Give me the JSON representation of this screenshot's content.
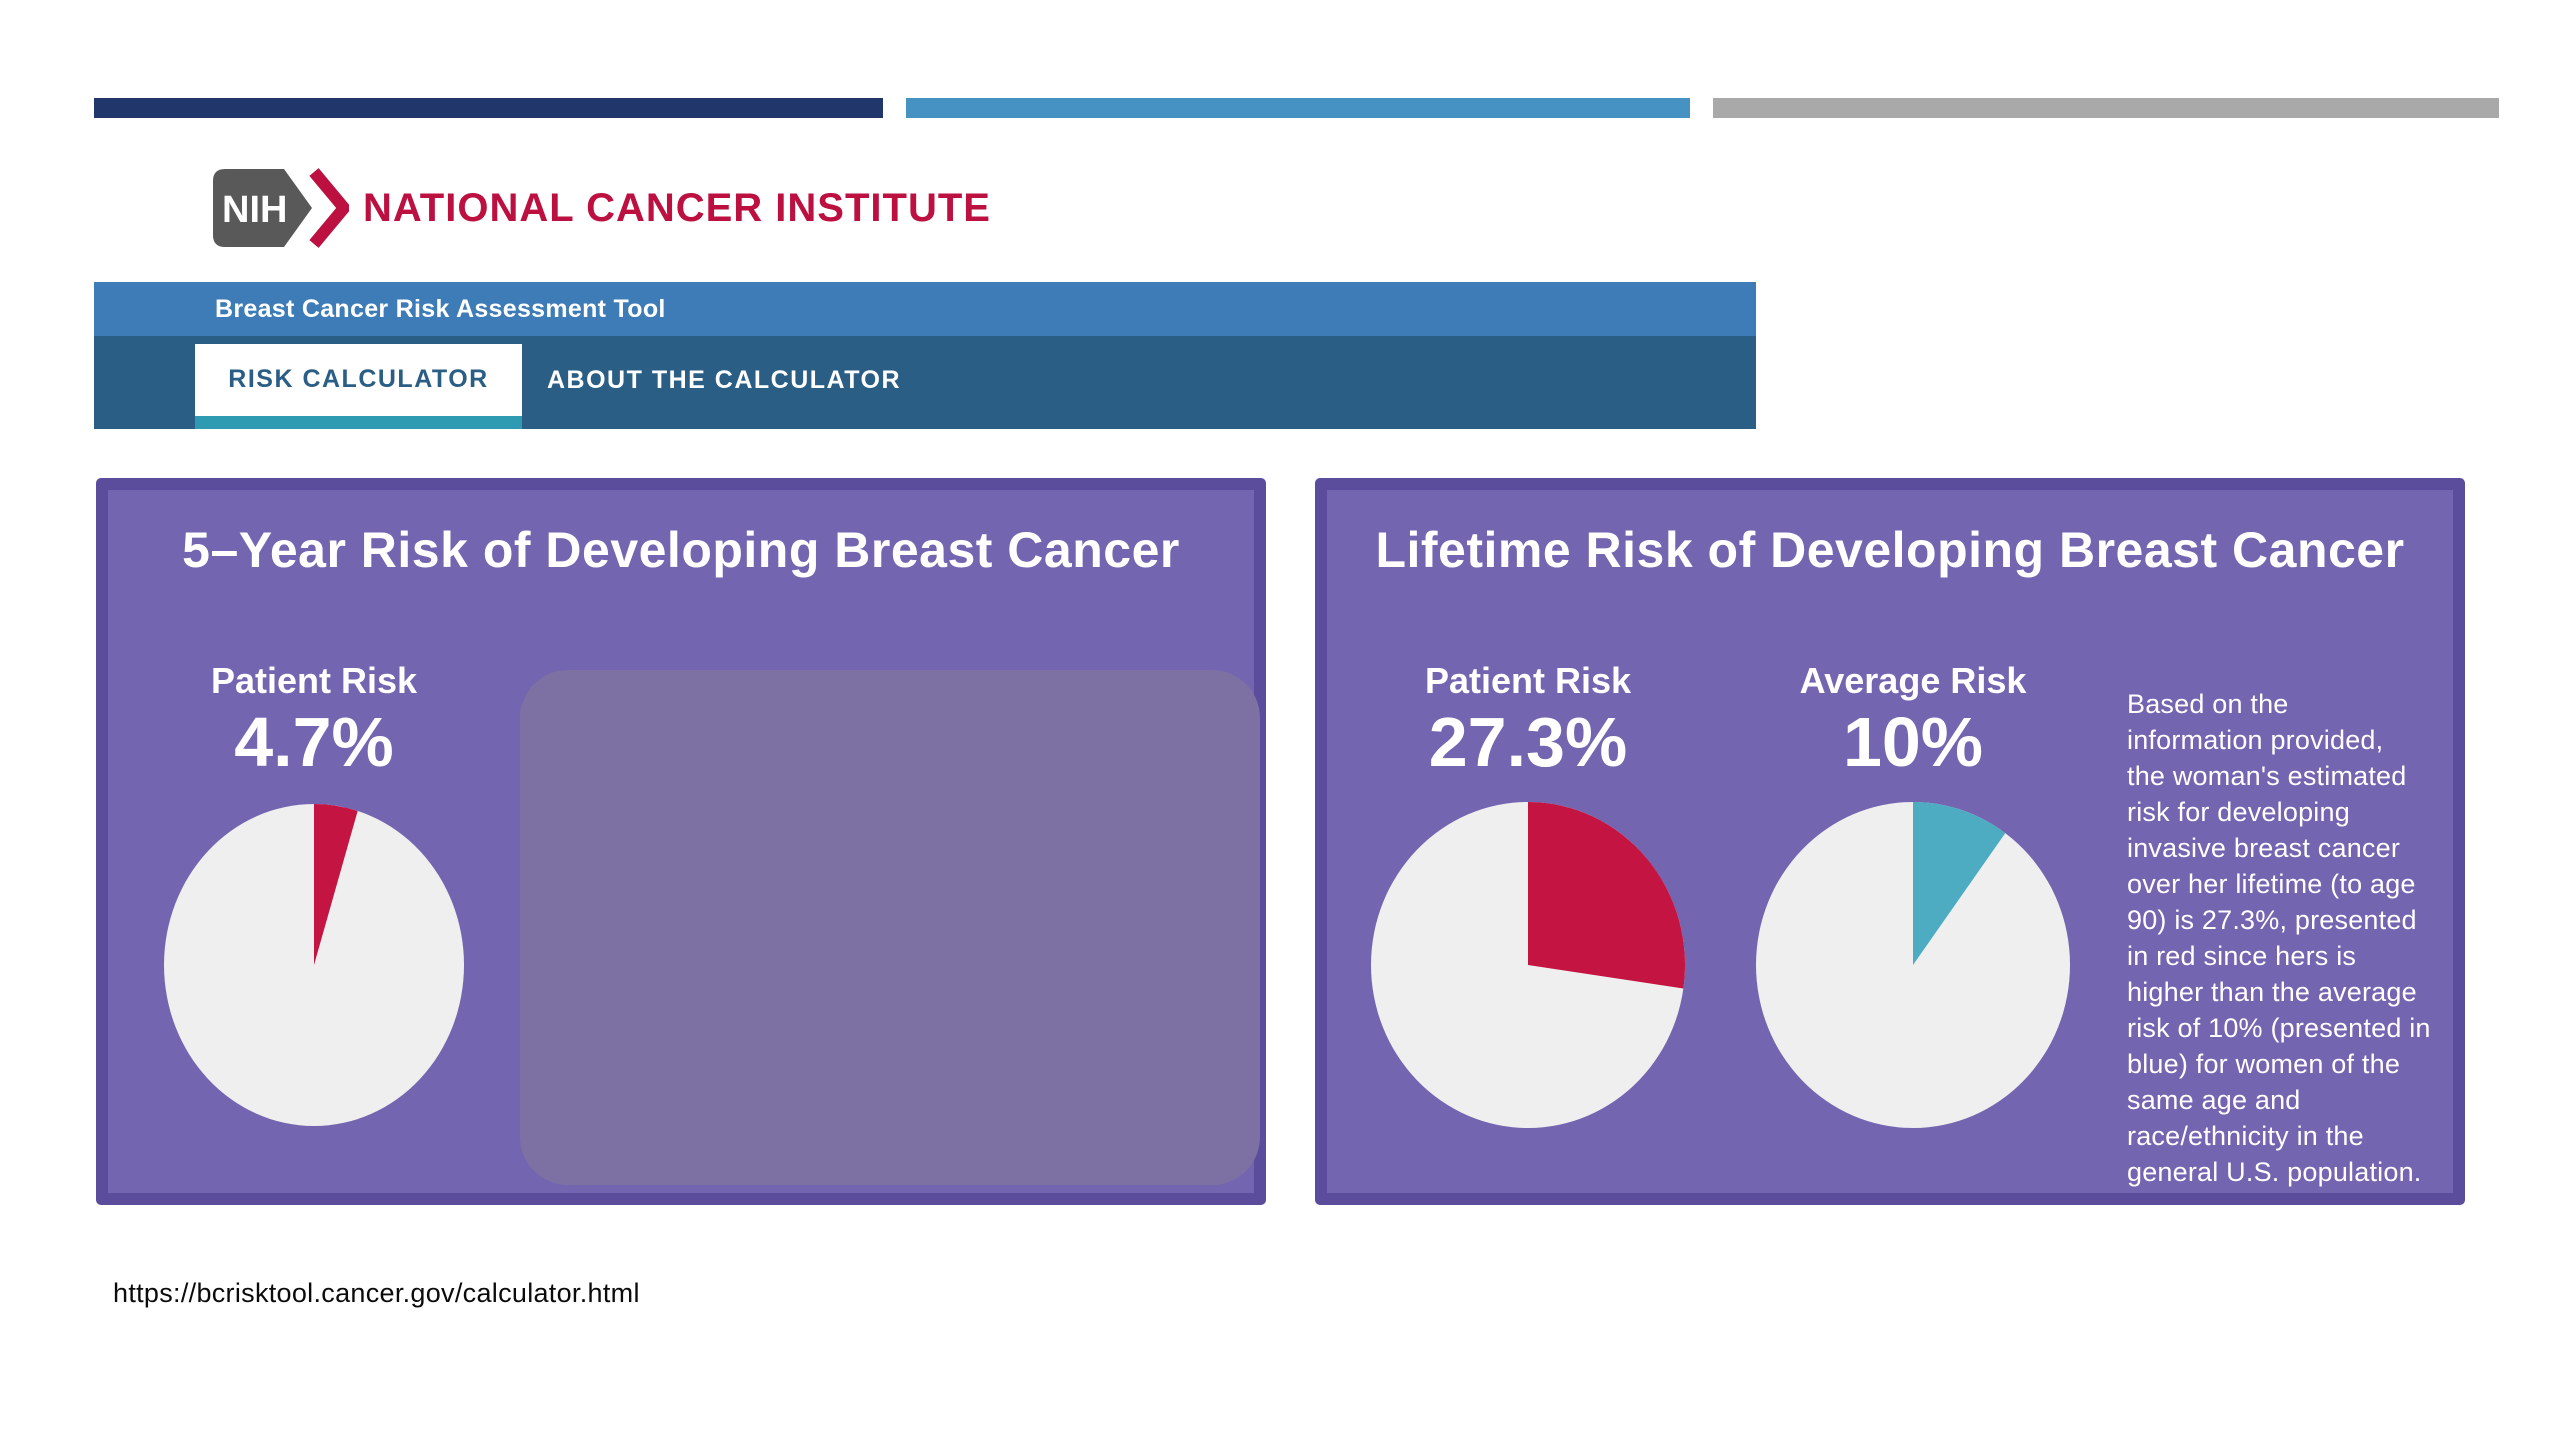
{
  "colors": {
    "accent_navy": "#21366B",
    "accent_blue": "#4692C3",
    "accent_gray": "#A9A9A9",
    "nci_red": "#BB1040",
    "header_blue": "#3E7CB8",
    "header_dark_blue": "#2B5E85",
    "tab_underline_teal": "#2F9BB3",
    "panel_purple": "#7365B0",
    "panel_border_purple": "#5C4D9C",
    "redacted_purple_gray": "#7D71A4",
    "pie_base": "#F0EFEF",
    "patient_risk_red": "#C31442",
    "average_risk_blue": "#4DACC1"
  },
  "logo": {
    "nih": "NIH",
    "institute": "NATIONAL CANCER INSTITUTE"
  },
  "header": {
    "app_title": "Breast Cancer Risk Assessment Tool",
    "tabs": [
      {
        "label": "RISK CALCULATOR",
        "active": true
      },
      {
        "label": "ABOUT THE CALCULATOR",
        "active": false
      }
    ]
  },
  "left_panel": {
    "title": "5–Year Risk of Developing Breast Cancer"
  },
  "right_panel": {
    "title": "Lifetime Risk of Developing Breast Cancer",
    "note": "Based on the\ninformation provided,\nthe woman's estimated\nrisk for developing\ninvasive breast cancer\nover her lifetime (to age\n90) is 27.3%, presented\nin red since hers is\nhigher than the average\nrisk of 10% (presented in\nblue) for women of the\nsame age and\nrace/ethnicity in the\ngeneral U.S. population."
  },
  "footer": {
    "url": "https://bcrisktool.cancer.gov/calculator.html"
  },
  "chart_data": [
    {
      "type": "pie",
      "panel": "5-Year Risk of Developing Breast Cancer",
      "label": "Patient Risk",
      "value_label": "4.7%",
      "value_pct": 4.7,
      "slice_color": "#C31442",
      "base_color": "#F0EFEF",
      "start_angle_deg": 0,
      "direction": "clockwise"
    },
    {
      "type": "pie",
      "panel": "Lifetime Risk of Developing Breast Cancer",
      "label": "Patient Risk",
      "value_label": "27.3%",
      "value_pct": 27.3,
      "slice_color": "#C31442",
      "base_color": "#F0EFEF",
      "start_angle_deg": 0,
      "direction": "clockwise"
    },
    {
      "type": "pie",
      "panel": "Lifetime Risk of Developing Breast Cancer",
      "label": "Average Risk",
      "value_label": "10%",
      "value_pct": 10,
      "slice_color": "#4DACC1",
      "base_color": "#F0EFEF",
      "start_angle_deg": 0,
      "direction": "clockwise"
    }
  ]
}
